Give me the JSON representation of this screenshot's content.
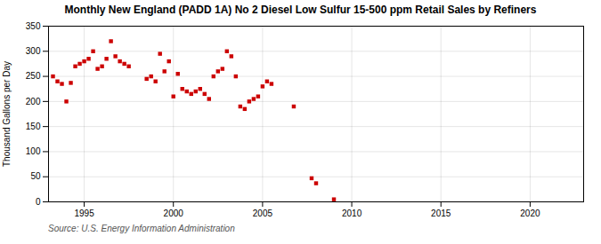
{
  "chart_data": {
    "type": "scatter",
    "title": "Monthly New England (PADD 1A) No 2 Diesel Low Sulfur 15-500 ppm Retail Sales by Refiners",
    "ylabel": "Thousand Gallons per Day",
    "source": "Source: U.S. Energy Information Administration",
    "color": "#cc0000",
    "marker": "square",
    "grid": true,
    "xlim": [
      1993,
      2023
    ],
    "ylim": [
      0,
      350
    ],
    "xticks": [
      1995,
      2000,
      2005,
      2010,
      2015,
      2020
    ],
    "yticks": [
      0,
      50,
      100,
      150,
      200,
      250,
      300,
      350
    ],
    "x": [
      1993.25,
      1993.5,
      1993.75,
      1994.0,
      1994.25,
      1994.5,
      1994.75,
      1995.0,
      1995.25,
      1995.5,
      1995.75,
      1996.0,
      1996.25,
      1996.5,
      1996.75,
      1997.0,
      1997.25,
      1997.5,
      1998.5,
      1998.75,
      1999.0,
      1999.25,
      1999.5,
      1999.75,
      2000.0,
      2000.25,
      2000.5,
      2000.75,
      2001.0,
      2001.25,
      2001.5,
      2001.75,
      2002.0,
      2002.25,
      2002.5,
      2002.75,
      2003.0,
      2003.25,
      2003.5,
      2003.75,
      2004.0,
      2004.25,
      2004.5,
      2004.75,
      2005.0,
      2005.25,
      2005.5,
      2006.75,
      2007.75,
      2008.0,
      2009.0
    ],
    "values": [
      250,
      240,
      235,
      200,
      237,
      270,
      275,
      280,
      285,
      300,
      265,
      270,
      285,
      320,
      290,
      280,
      275,
      270,
      245,
      250,
      240,
      295,
      260,
      280,
      210,
      255,
      225,
      220,
      215,
      220,
      225,
      215,
      205,
      250,
      260,
      265,
      300,
      290,
      250,
      190,
      185,
      200,
      205,
      210,
      230,
      240,
      235,
      190,
      47,
      37,
      5
    ]
  }
}
